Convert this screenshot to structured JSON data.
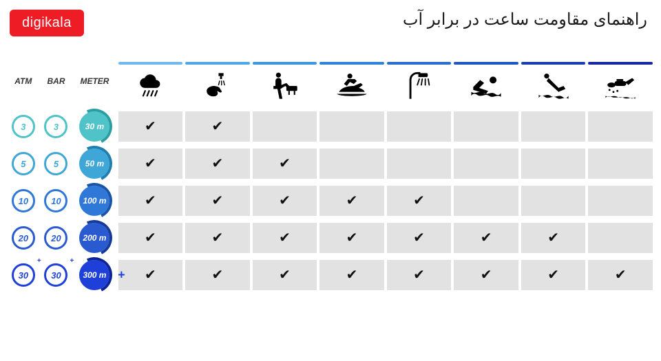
{
  "logo_text": "digikala",
  "logo_bg": "#ee1c25",
  "title": "راهنمای مقاومت ساعت در برابر آب",
  "title_color": "#1a1a1a",
  "background_color": "#ffffff",
  "cell_bg": "#e2e2e2",
  "check_glyph": "✔",
  "units": {
    "atm_label": "ATM",
    "bar_label": "BAR",
    "meter_label": "METER"
  },
  "activities": [
    {
      "name": "rain",
      "bar_color": "#6fb9f0"
    },
    {
      "name": "wash-hands",
      "bar_color": "#4ea8e8"
    },
    {
      "name": "bath",
      "bar_color": "#3d96e0"
    },
    {
      "name": "jetski",
      "bar_color": "#2f83d8"
    },
    {
      "name": "shower",
      "bar_color": "#2a6fd0"
    },
    {
      "name": "swim",
      "bar_color": "#1f56c2"
    },
    {
      "name": "dive",
      "bar_color": "#1a3fb0"
    },
    {
      "name": "scuba",
      "bar_color": "#1528a0"
    }
  ],
  "rows": [
    {
      "atm": "3",
      "bar": "3",
      "meter": "30 m",
      "plus": false,
      "atm_color": "#4fc3c7",
      "bar_color": "#4fc3c7",
      "meter_bg": "#4fc3c7",
      "arc_color": "#2a9ea3",
      "checks": [
        true,
        true,
        false,
        false,
        false,
        false,
        false,
        false
      ]
    },
    {
      "atm": "5",
      "bar": "5",
      "meter": "50 m",
      "plus": false,
      "atm_color": "#3fa6d8",
      "bar_color": "#3fa6d8",
      "meter_bg": "#3fa6d8",
      "arc_color": "#1e7fb0",
      "checks": [
        true,
        true,
        true,
        false,
        false,
        false,
        false,
        false
      ]
    },
    {
      "atm": "10",
      "bar": "10",
      "meter": "100 m",
      "plus": false,
      "atm_color": "#2f78d8",
      "bar_color": "#2f78d8",
      "meter_bg": "#2f78d8",
      "arc_color": "#1954a8",
      "checks": [
        true,
        true,
        true,
        true,
        true,
        false,
        false,
        false
      ]
    },
    {
      "atm": "20",
      "bar": "20",
      "meter": "200 m",
      "plus": false,
      "atm_color": "#2a5ad0",
      "bar_color": "#2a5ad0",
      "meter_bg": "#2a5ad0",
      "arc_color": "#163a9a",
      "checks": [
        true,
        true,
        true,
        true,
        true,
        true,
        true,
        false
      ]
    },
    {
      "atm": "30",
      "bar": "30",
      "meter": "300 m",
      "plus": true,
      "atm_color": "#1e3fd8",
      "bar_color": "#1e3fd8",
      "meter_bg": "#1e3fd8",
      "arc_color": "#0d2496",
      "checks": [
        true,
        true,
        true,
        true,
        true,
        true,
        true,
        true
      ]
    }
  ],
  "icons": {
    "rain": "<svg viewBox='0 0 64 64'><path fill='#000' d='M44 20a12 12 0 0 0-23-4 10 10 0 0 0 1 20h22a8 8 0 0 0 0-16z'/><g stroke='#000' stroke-width='3' stroke-linecap='round'><line x1='22' y1='42' x2='18' y2='52'/><line x1='30' y1='42' x2='26' y2='52'/><line x1='38' y1='42' x2='34' y2='52'/><line x1='46' y1='42' x2='42' y2='52'/></g></svg>",
    "wash-hands": "<svg viewBox='0 0 64 64'><rect x='34' y='6' width='10' height='6' fill='#000'/><rect x='37' y='12' width='4' height='6' fill='#000'/><path fill='#000' d='M10 42c0-6 8-10 14-10 3 0 10 1 12 4l4 6c1 2-1 4-3 3l-6-3c2 4 2 8-2 10-6 3-19 0-19-10z'/><g stroke='#000' stroke-width='2' stroke-linecap='round'><line x1='36' y1='22' x2='34' y2='30'/><line x1='40' y1='22' x2='40' y2='30'/><line x1='44' y1='22' x2='46' y2='30'/></g></svg>",
    "bath": "<svg viewBox='0 0 64 64'><circle cx='20' cy='10' r='5' fill='#000'/><path fill='#000' d='M20 16c-4 0-6 3-6 6v10h-4v6h8l4 20h6l-4-20 10-6 8 8 4-4-10-10-10 4v-8c0-3-2-6-6-6z'/><rect x='36' y='32' width='22' height='10' rx='2' fill='#000'/><rect x='40' y='42' width='3' height='8' fill='#000'/><rect x='51' y='42' width='3' height='8' fill='#000'/></svg>",
    "jetski": "<svg viewBox='0 0 64 64'><circle cx='28' cy='12' r='5' fill='#000'/><path fill='#000' d='M24 18l-8 10 6 4 6-8 8 4 6-6-4-4-14 0z'/><path fill='#000' d='M6 44c6-10 20-12 30-12l14-6 4 4-8 6c10 2 12 8 12 8H6z'/><path fill='#000' d='M2 48h60c-4 6-56 6-60 0z'/></svg>",
    "shower": "<svg viewBox='0 0 64 64'><path fill='none' stroke='#000' stroke-width='4' d='M14 58V20c0-8 6-14 14-14h6'/><path fill='#000' d='M30 6h18a8 8 0 0 1 0 8H30z'/><g stroke='#000' stroke-width='2.5' stroke-linecap='round'><line x1='32' y1='18' x2='28' y2='30'/><line x1='38' y1='18' x2='36' y2='30'/><line x1='44' y1='18' x2='44' y2='30'/><line x1='50' y1='18' x2='52' y2='30'/></g></svg>",
    "swim": "<svg viewBox='0 0 64 64'><circle cx='46' cy='20' r='7' fill='#000'/><path fill='#000' d='M6 34l14-14 8 6-10 10 18 6-4 6-26-8z'/><path fill='#000' d='M2 44c8 6 16-4 24 2s16-4 24 2 12-2 12-2v8c-8-6-16 4-24-2s-16 4-24-2-12 2-12 2z'/></svg>",
    "dive": "<svg viewBox='0 0 64 64'><circle cx='18' cy='12' r='5' fill='#000'/><path fill='#000' d='M22 16l20 20 10-4 4 6-14 6-24-22z'/><path fill='#000' d='M2 50c8 6 16-4 24 2s16-4 24 2 12-2 12-2v6c-8-6-16 4-24-2s-16 4-24-2-12 2-12 2z'/></svg>",
    "scuba": "<svg viewBox='0 0 64 64'><ellipse cx='14' cy='30' rx='8' ry='5' fill='#000'/><rect x='20' y='22' width='24' height='10' rx='5' fill='#000'/><path fill='#000' d='M42 24l14-8 4 4-12 10z'/><rect x='24' y='18' width='14' height='4' rx='2' fill='#000'/><circle cx='10' cy='40' r='2' fill='#000'/><circle cx='18' cy='44' r='2' fill='#000'/><circle cx='26' cy='42' r='2' fill='#000'/><path fill='#000' d='M2 52c8 4 16-2 24 2s16-2 24 2 12-2 12-2v4c-8-4-16 2-24-2s-16 2-24-2-12 2-12 2z'/></svg>"
  }
}
